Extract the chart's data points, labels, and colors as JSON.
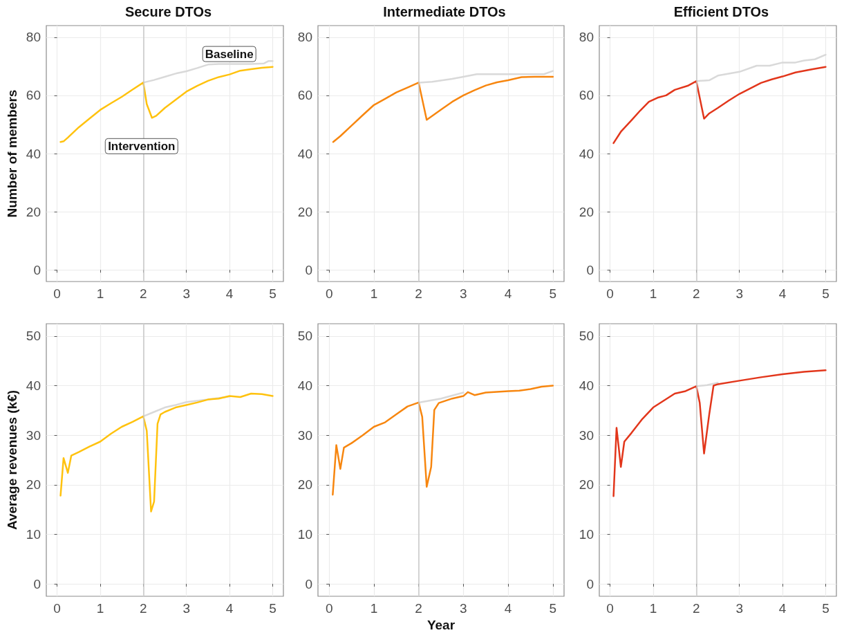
{
  "chart_data": [
    {
      "type": "line",
      "title": "Secure DTOs",
      "ylabel": "Number of members",
      "xlim": [
        -0.25,
        5.25
      ],
      "xticks": [
        0,
        1,
        2,
        3,
        4,
        5
      ],
      "ylim": [
        -4,
        84
      ],
      "yticks": [
        0,
        20,
        40,
        60,
        80
      ],
      "grid": true,
      "marker": "none",
      "ref_lines": [
        {
          "axis": "x",
          "value": 2,
          "color": "#c8c8c8"
        }
      ],
      "annotations": [
        "Baseline",
        "Intervention"
      ],
      "series": [
        {
          "color": "#d9d9d9",
          "x": [
            2,
            2.25,
            2.5,
            2.75,
            3,
            3.25,
            3.5,
            3.75,
            4,
            4.5,
            4.8,
            4.9,
            5
          ],
          "values": [
            64.4,
            65.3,
            66.4,
            67.5,
            68.3,
            69.4,
            70.6,
            70.8,
            70.8,
            70.8,
            71,
            71.8,
            71.8
          ]
        },
        {
          "color": "#ffc20e",
          "x": [
            0.08,
            0.15,
            0.25,
            0.5,
            0.75,
            1,
            1.25,
            1.5,
            1.75,
            2,
            2.08,
            2.2,
            2.3,
            2.5,
            2.75,
            3,
            3.25,
            3.5,
            3.75,
            4,
            4.25,
            4.5,
            4.75,
            5
          ],
          "values": [
            44,
            44.2,
            45.5,
            49,
            52,
            55,
            57.3,
            59.5,
            62,
            64.4,
            57,
            52.3,
            53,
            55.7,
            58.5,
            61.3,
            63.3,
            65,
            66.3,
            67.2,
            68.5,
            69,
            69.5,
            69.8
          ]
        }
      ]
    },
    {
      "type": "line",
      "title": "Intermediate DTOs",
      "xlim": [
        -0.25,
        5.25
      ],
      "xticks": [
        0,
        1,
        2,
        3,
        4,
        5
      ],
      "ylim": [
        -4,
        84
      ],
      "yticks": [
        0,
        20,
        40,
        60,
        80
      ],
      "grid": true,
      "marker": "none",
      "ref_lines": [
        {
          "axis": "x",
          "value": 2,
          "color": "#c8c8c8"
        }
      ],
      "series": [
        {
          "color": "#d9d9d9",
          "x": [
            2,
            2.3,
            2.75,
            3,
            3.3,
            4,
            4.8,
            5
          ],
          "values": [
            64.4,
            64.7,
            65.7,
            66.4,
            67.3,
            67.3,
            67.3,
            68.4
          ]
        },
        {
          "color": "#f7860f",
          "x": [
            0.09,
            0.25,
            0.5,
            0.75,
            1,
            1.25,
            1.5,
            1.75,
            2,
            2.18,
            2.5,
            2.75,
            3,
            3.25,
            3.5,
            3.75,
            4,
            4.3,
            4.6,
            5
          ],
          "values": [
            44,
            46,
            49.6,
            53.2,
            56.7,
            58.8,
            61,
            62.7,
            64.4,
            51.6,
            55.1,
            57.8,
            60,
            61.8,
            63.4,
            64.5,
            65.2,
            66.3,
            66.4,
            66.4
          ]
        }
      ]
    },
    {
      "type": "line",
      "title": "Efficient DTOs",
      "xlim": [
        -0.25,
        5.25
      ],
      "xticks": [
        0,
        1,
        2,
        3,
        4,
        5
      ],
      "ylim": [
        -4,
        84
      ],
      "yticks": [
        0,
        20,
        40,
        60,
        80
      ],
      "grid": true,
      "marker": "none",
      "ref_lines": [
        {
          "axis": "x",
          "value": 2,
          "color": "#c8c8c8"
        }
      ],
      "series": [
        {
          "color": "#d9d9d9",
          "x": [
            2,
            2.3,
            2.5,
            3,
            3.4,
            3.7,
            4,
            4.3,
            4.5,
            4.75,
            5
          ],
          "values": [
            64.9,
            65.2,
            66.8,
            68.1,
            70.2,
            70.2,
            71.3,
            71.3,
            72,
            72.4,
            74
          ]
        },
        {
          "color": "#e2361b",
          "x": [
            0.08,
            0.25,
            0.5,
            0.7,
            0.9,
            1.1,
            1.3,
            1.5,
            1.8,
            2,
            2.18,
            2.3,
            2.5,
            2.75,
            3,
            3.25,
            3.5,
            3.75,
            4,
            4.3,
            4.7,
            5
          ],
          "values": [
            43.6,
            47.5,
            51.5,
            54.8,
            57.8,
            59.2,
            60,
            61.9,
            63.3,
            64.9,
            52,
            53.8,
            55.7,
            58.2,
            60.5,
            62.4,
            64.3,
            65.5,
            66.5,
            67.9,
            69,
            69.8
          ]
        }
      ]
    },
    {
      "type": "line",
      "ylabel": "Average revenues (k€)",
      "xlim": [
        -0.25,
        5.25
      ],
      "xticks": [
        0,
        1,
        2,
        3,
        4,
        5
      ],
      "ylim": [
        -2.5,
        52.5
      ],
      "yticks": [
        0,
        10,
        20,
        30,
        40,
        50
      ],
      "grid": true,
      "marker": "none",
      "ref_lines": [
        {
          "axis": "x",
          "value": 2,
          "color": "#c8c8c8"
        }
      ],
      "series": [
        {
          "color": "#d9d9d9",
          "x": [
            2,
            2.25,
            2.5,
            2.75,
            3,
            3.5,
            4
          ],
          "values": [
            33.8,
            34.7,
            35.6,
            36.1,
            36.7,
            37.2,
            37.8
          ]
        },
        {
          "color": "#ffc20e",
          "x": [
            0.08,
            0.15,
            0.25,
            0.33,
            0.5,
            0.75,
            1,
            1.25,
            1.5,
            1.75,
            2,
            2.08,
            2.18,
            2.25,
            2.33,
            2.4,
            2.5,
            2.75,
            3,
            3.25,
            3.5,
            3.75,
            4,
            4.25,
            4.5,
            4.75,
            5
          ],
          "values": [
            17.8,
            25.4,
            22.4,
            25.9,
            26.6,
            27.7,
            28.7,
            30.3,
            31.7,
            32.7,
            33.8,
            30.9,
            14.6,
            16.6,
            32.3,
            34.2,
            34.7,
            35.6,
            36.1,
            36.6,
            37.2,
            37.4,
            37.9,
            37.7,
            38.4,
            38.3,
            37.9
          ]
        }
      ]
    },
    {
      "type": "line",
      "xlabel": "Year",
      "xlim": [
        -0.25,
        5.25
      ],
      "xticks": [
        0,
        1,
        2,
        3,
        4,
        5
      ],
      "ylim": [
        -2.5,
        52.5
      ],
      "yticks": [
        0,
        10,
        20,
        30,
        40,
        50
      ],
      "grid": true,
      "marker": "none",
      "ref_lines": [
        {
          "axis": "x",
          "value": 2,
          "color": "#c8c8c8"
        }
      ],
      "series": [
        {
          "color": "#d9d9d9",
          "x": [
            2,
            2.5,
            3
          ],
          "values": [
            36.6,
            37.4,
            38.6
          ]
        },
        {
          "color": "#f7860f",
          "x": [
            0.08,
            0.16,
            0.25,
            0.33,
            0.5,
            0.75,
            1,
            1.25,
            1.5,
            1.75,
            2,
            2.08,
            2.18,
            2.28,
            2.35,
            2.45,
            2.75,
            3,
            3.1,
            3.25,
            3.5,
            4,
            4.25,
            4.5,
            4.75,
            5
          ],
          "values": [
            18,
            28,
            23.2,
            27.5,
            28.4,
            30,
            31.7,
            32.6,
            34.2,
            35.8,
            36.6,
            33.7,
            19.6,
            23.6,
            35.1,
            36.5,
            37.4,
            37.9,
            38.7,
            38.1,
            38.6,
            38.9,
            39,
            39.3,
            39.8,
            40
          ]
        }
      ]
    },
    {
      "type": "line",
      "xlim": [
        -0.25,
        5.25
      ],
      "xticks": [
        0,
        1,
        2,
        3,
        4,
        5
      ],
      "ylim": [
        -2.5,
        52.5
      ],
      "yticks": [
        0,
        10,
        20,
        30,
        40,
        50
      ],
      "grid": true,
      "marker": "none",
      "ref_lines": [
        {
          "axis": "x",
          "value": 2,
          "color": "#c8c8c8"
        }
      ],
      "series": [
        {
          "color": "#d9d9d9",
          "x": [
            2,
            2.25,
            2.5
          ],
          "values": [
            39.9,
            40.1,
            40.6
          ]
        },
        {
          "color": "#e2361b",
          "x": [
            0.08,
            0.15,
            0.25,
            0.33,
            0.5,
            0.75,
            1,
            1.25,
            1.5,
            1.75,
            2,
            2.08,
            2.18,
            2.3,
            2.4,
            2.5,
            3,
            3.5,
            4,
            4.5,
            5
          ],
          "values": [
            17.7,
            31.5,
            23.6,
            28.7,
            30.5,
            33.3,
            35.6,
            37,
            38.4,
            38.9,
            39.9,
            36.5,
            26.3,
            34.2,
            40,
            40.3,
            41,
            41.7,
            42.3,
            42.8,
            43.1
          ]
        }
      ]
    }
  ]
}
